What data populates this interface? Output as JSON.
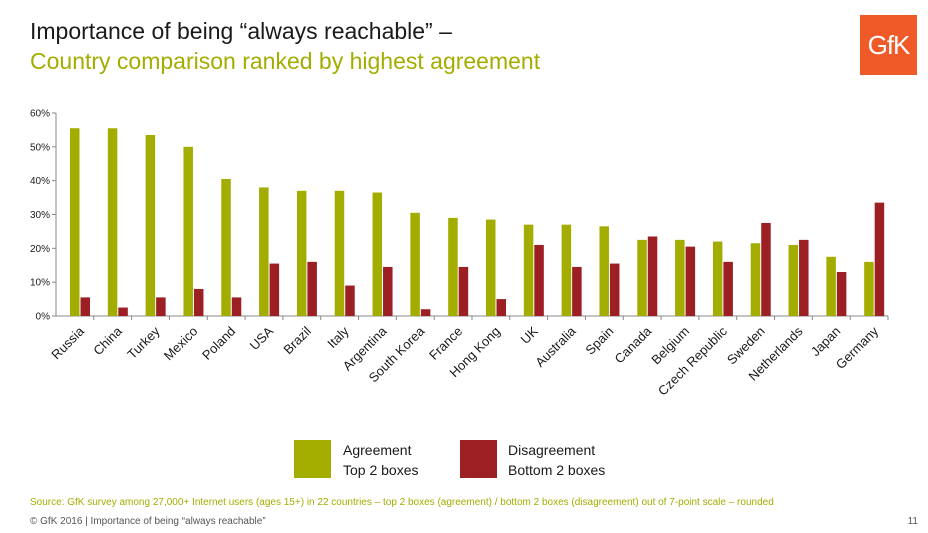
{
  "title_line1": "Importance of being “always reachable” –",
  "title_line2": "Country comparison ranked by highest agreement",
  "logo_text": "GfK",
  "colors": {
    "agreement": "#a3ad00",
    "disagreement": "#9c1f24",
    "accent": "#a3ad00",
    "logo_bg": "#ef5a28"
  },
  "chart_data": {
    "type": "bar",
    "title": "",
    "xlabel": "",
    "ylabel": "",
    "ylim": [
      0,
      60
    ],
    "yticks": [
      "0%",
      "10%",
      "20%",
      "30%",
      "40%",
      "50%",
      "60%"
    ],
    "categories": [
      "Russia",
      "China",
      "Turkey",
      "Mexico",
      "Poland",
      "USA",
      "Brazil",
      "Italy",
      "Argentina",
      "South Korea",
      "France",
      "Hong Kong",
      "UK",
      "Australia",
      "Spain",
      "Canada",
      "Belgium",
      "Czech Republic",
      "Sweden",
      "Netherlands",
      "Japan",
      "Germany"
    ],
    "series": [
      {
        "name": "Agreement Top 2 boxes",
        "values": [
          55.5,
          55.5,
          53.5,
          50,
          40.5,
          38,
          37,
          37,
          36.5,
          30.5,
          29,
          28.5,
          27,
          27,
          26.5,
          22.5,
          22.5,
          22,
          21.5,
          21,
          17.5,
          16
        ]
      },
      {
        "name": "Disagreement Bottom 2 boxes",
        "values": [
          5.5,
          2.5,
          5.5,
          8,
          5.5,
          15.5,
          16,
          9,
          14.5,
          2,
          14.5,
          5,
          21,
          14.5,
          15.5,
          23.5,
          20.5,
          16,
          27.5,
          22.5,
          13,
          33.5
        ]
      }
    ]
  },
  "legend": {
    "agreement_line1": "Agreement",
    "agreement_line2": "Top 2 boxes",
    "disagreement_line1": "Disagreement",
    "disagreement_line2": "Bottom 2 boxes"
  },
  "source_text": "Source: GfK survey among 27,000+ Internet users (ages 15+) in 22 countries – top 2 boxes (agreement) / bottom 2 boxes (disagreement) out of 7-point scale – rounded",
  "footer_text": "© GfK 2016 | Importance of being “always reachable”",
  "page_number": "11"
}
